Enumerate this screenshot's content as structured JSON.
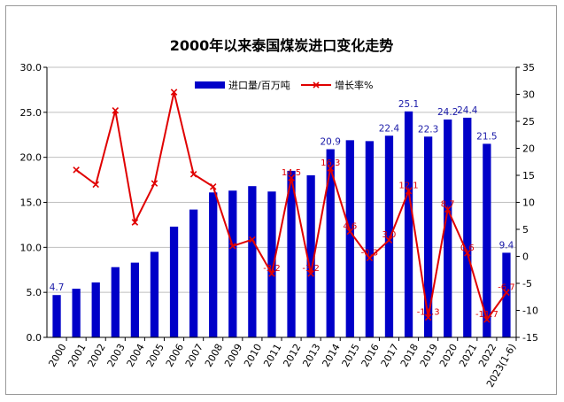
{
  "chart_data": {
    "type": "bar",
    "title": "2000年以来泰国煤炭进口变化走势",
    "categories": [
      "2000",
      "2001",
      "2002",
      "2003",
      "2004",
      "2005",
      "2006",
      "2007",
      "2008",
      "2009",
      "2010",
      "2011",
      "2012",
      "2013",
      "2014",
      "2015",
      "2016",
      "2017",
      "2018",
      "2019",
      "2020",
      "2021",
      "2022",
      "2023(1-6)"
    ],
    "series": [
      {
        "name": "进口量/百万吨",
        "type": "bar",
        "axis": "left",
        "color": "#0000c8",
        "values": [
          4.7,
          5.4,
          6.1,
          7.8,
          8.3,
          9.5,
          12.3,
          14.2,
          16.1,
          16.3,
          16.8,
          16.2,
          18.5,
          18.0,
          20.9,
          21.9,
          21.8,
          22.4,
          25.1,
          22.3,
          24.2,
          24.4,
          21.5,
          9.4
        ]
      },
      {
        "name": "增长率%",
        "type": "line",
        "axis": "right",
        "color": "#e00000",
        "values": [
          null,
          16.0,
          13.3,
          27.0,
          6.3,
          13.5,
          30.4,
          15.2,
          12.9,
          1.9,
          3.1,
          -3.2,
          14.5,
          -3.2,
          16.3,
          4.6,
          -0.3,
          3.0,
          12.1,
          -11.3,
          8.7,
          0.6,
          -11.7,
          -6.7
        ]
      }
    ],
    "y_left": {
      "min": 0,
      "max": 30,
      "step": 5,
      "tick_labels": [
        "0.0",
        "5.0",
        "10.0",
        "15.0",
        "20.0",
        "25.0",
        "30.0"
      ]
    },
    "y_right": {
      "min": -15,
      "max": 35,
      "step": 5,
      "tick_labels": [
        "-15",
        "-10",
        "-5",
        "0",
        "5",
        "10",
        "15",
        "20",
        "25",
        "30",
        "35"
      ]
    },
    "bar_labels": [
      {
        "index": 0,
        "text": "4.7"
      },
      {
        "index": 14,
        "text": "20.9"
      },
      {
        "index": 17,
        "text": "22.4"
      },
      {
        "index": 18,
        "text": "25.1"
      },
      {
        "index": 19,
        "text": "22.3"
      },
      {
        "index": 20,
        "text": "24.2"
      },
      {
        "index": 21,
        "text": "24.4"
      },
      {
        "index": 22,
        "text": "21.5"
      },
      {
        "index": 23,
        "text": "9.4"
      }
    ],
    "rate_labels": [
      {
        "index": 12,
        "text": "14.5"
      },
      {
        "index": 11,
        "text": "-3.2"
      },
      {
        "index": 13,
        "text": "-3.2"
      },
      {
        "index": 14,
        "text": "16.3"
      },
      {
        "index": 15,
        "text": "4.6"
      },
      {
        "index": 16,
        "text": "-0.3"
      },
      {
        "index": 17,
        "text": "3.0"
      },
      {
        "index": 18,
        "text": "12.1"
      },
      {
        "index": 19,
        "text": "-11.3"
      },
      {
        "index": 20,
        "text": "8.7"
      },
      {
        "index": 21,
        "text": "0.6"
      },
      {
        "index": 22,
        "text": "-11.7"
      },
      {
        "index": 23,
        "text": "-6.7"
      }
    ],
    "legend": {
      "position": "top-center"
    },
    "grid": {
      "horizontal": true,
      "vertical": false
    }
  }
}
